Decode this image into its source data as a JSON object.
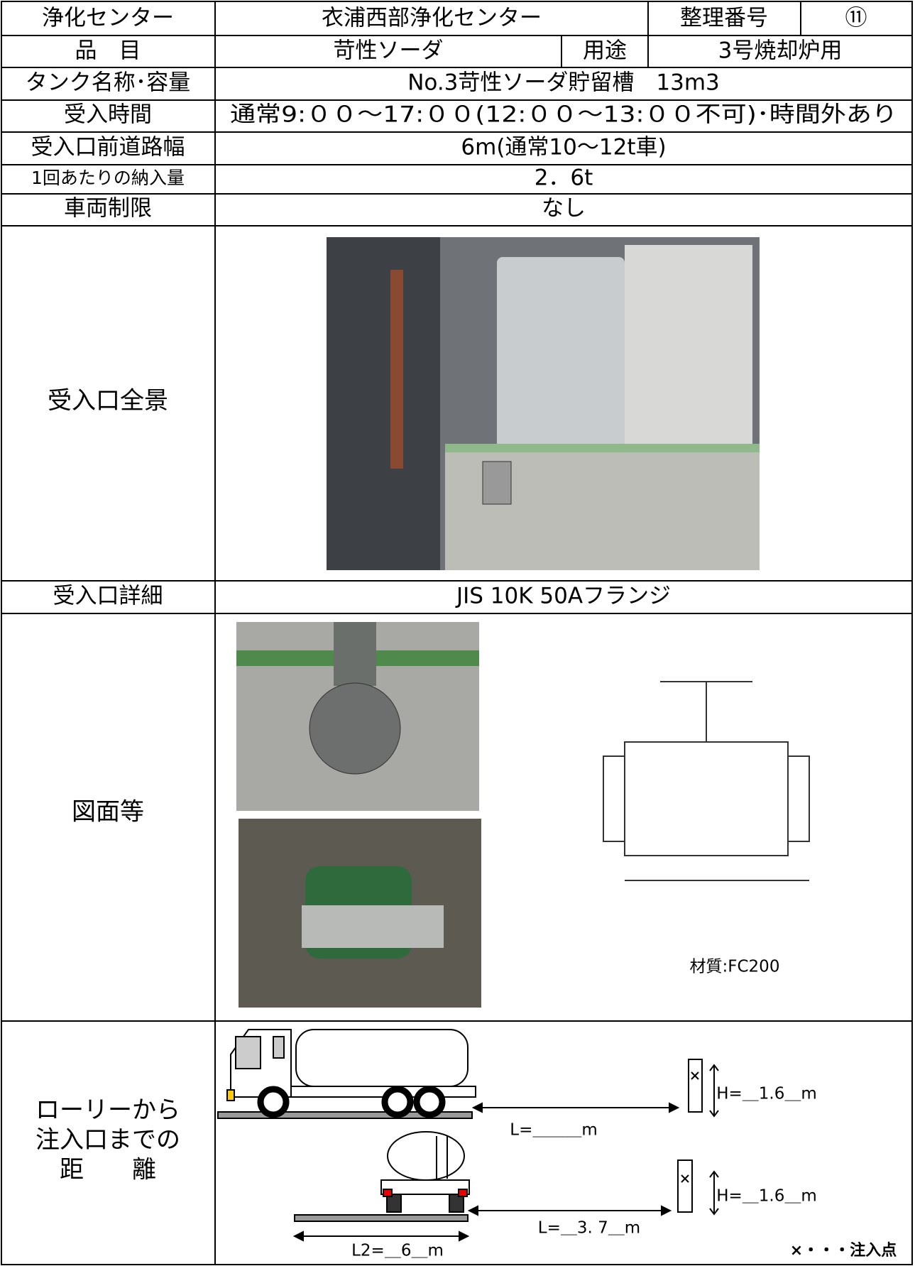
{
  "header": {
    "facility_label": "浄化センター",
    "facility": "衣浦西部浄化センター",
    "number_label": "整理番号",
    "number": "⑪"
  },
  "item": {
    "label": "品　目",
    "value": "苛性ソーダ",
    "use_label": "用途",
    "use": "3号焼却炉用"
  },
  "rows": [
    {
      "label": "タンク名称･容量",
      "value": "No.3苛性ソーダ貯留槽　13m3"
    },
    {
      "label": "受入時間",
      "value": "通常9:００～17:００(12:００～13:００不可)･時間外あり"
    },
    {
      "label": "受入口前道路幅",
      "value": "6m(通常10～12t車)"
    },
    {
      "label": "1回あたりの納入量",
      "value": "2．6t"
    },
    {
      "label": "車両制限",
      "value": "なし"
    }
  ],
  "overview": {
    "label": "受入口全景"
  },
  "detail": {
    "label": "受入口詳細",
    "value": "JIS 10K 50Aフランジ"
  },
  "drawings": {
    "label": "図面等",
    "material": "材質:FC200"
  },
  "distance": {
    "label": [
      "ローリーから",
      "注入口までの",
      "距　　離"
    ],
    "height_side": "H=＿1.6＿m",
    "length_side": "L=＿＿＿m",
    "height_rear": "H=＿1.6＿m",
    "length_rear": "L=＿3. 7＿m",
    "length_l2": "L2=＿6＿m",
    "legend": "×・・・注入点"
  }
}
